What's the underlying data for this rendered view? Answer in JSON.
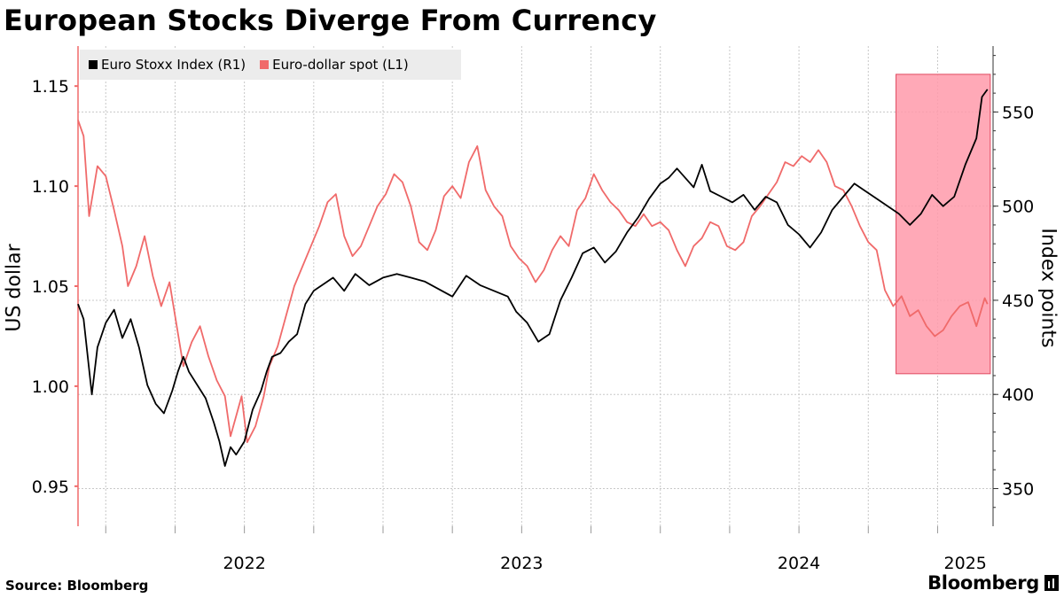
{
  "chart_data": {
    "type": "line",
    "title": "European Stocks Diverge From Currency",
    "ylabel_left": "US dollar",
    "ylabel_right": "Index points",
    "yticks_left": [
      "0.95",
      "1.00",
      "1.05",
      "1.10",
      "1.15"
    ],
    "yticks_right": [
      "350",
      "400",
      "450",
      "500",
      "550"
    ],
    "ylim_left": [
      0.93,
      1.17
    ],
    "ylim_right": [
      330,
      585
    ],
    "xlim": [
      2021.9,
      2025.2
    ],
    "x_tick_labels": [
      {
        "label": "2022",
        "year": 2022.0
      },
      {
        "label": "2023",
        "year": 2023.0
      },
      {
        "label": "2024",
        "year": 2024.0
      },
      {
        "label": "2025",
        "year": 2025.0
      }
    ],
    "highlight": {
      "x_start": 2024.85,
      "x_end": 2025.19,
      "y_start": 411,
      "y_end": 570,
      "axis": "right",
      "color": "#ff9aaa"
    },
    "legend_position": "top-left",
    "series": [
      {
        "name": "Euro Stoxx Index (R1)",
        "axis": "right",
        "color": "#000000",
        "points": [
          [
            2021.9,
            448
          ],
          [
            2021.92,
            440
          ],
          [
            2021.95,
            400
          ],
          [
            2021.97,
            425
          ],
          [
            2022.0,
            438
          ],
          [
            2022.03,
            445
          ],
          [
            2022.06,
            430
          ],
          [
            2022.09,
            440
          ],
          [
            2022.12,
            425
          ],
          [
            2022.15,
            405
          ],
          [
            2022.18,
            395
          ],
          [
            2022.21,
            390
          ],
          [
            2022.24,
            402
          ],
          [
            2022.26,
            412
          ],
          [
            2022.28,
            420
          ],
          [
            2022.3,
            412
          ],
          [
            2022.33,
            405
          ],
          [
            2022.36,
            398
          ],
          [
            2022.39,
            385
          ],
          [
            2022.41,
            375
          ],
          [
            2022.43,
            362
          ],
          [
            2022.45,
            372
          ],
          [
            2022.47,
            368
          ],
          [
            2022.5,
            375
          ],
          [
            2022.53,
            392
          ],
          [
            2022.56,
            402
          ],
          [
            2022.58,
            412
          ],
          [
            2022.6,
            420
          ],
          [
            2022.63,
            422
          ],
          [
            2022.66,
            428
          ],
          [
            2022.69,
            432
          ],
          [
            2022.72,
            448
          ],
          [
            2022.75,
            455
          ],
          [
            2022.78,
            458
          ],
          [
            2022.82,
            462
          ],
          [
            2022.86,
            455
          ],
          [
            2022.9,
            464
          ],
          [
            2022.95,
            458
          ],
          [
            2023.0,
            462
          ],
          [
            2023.05,
            464
          ],
          [
            2023.1,
            462
          ],
          [
            2023.15,
            460
          ],
          [
            2023.2,
            456
          ],
          [
            2023.25,
            452
          ],
          [
            2023.3,
            463
          ],
          [
            2023.35,
            458
          ],
          [
            2023.4,
            455
          ],
          [
            2023.45,
            452
          ],
          [
            2023.48,
            444
          ],
          [
            2023.52,
            438
          ],
          [
            2023.56,
            428
          ],
          [
            2023.6,
            432
          ],
          [
            2023.64,
            450
          ],
          [
            2023.68,
            462
          ],
          [
            2023.72,
            475
          ],
          [
            2023.76,
            478
          ],
          [
            2023.8,
            470
          ],
          [
            2023.84,
            476
          ],
          [
            2023.88,
            486
          ],
          [
            2023.92,
            494
          ],
          [
            2023.96,
            504
          ],
          [
            2024.0,
            512
          ],
          [
            2024.03,
            515
          ],
          [
            2024.06,
            520
          ],
          [
            2024.09,
            515
          ],
          [
            2024.12,
            510
          ],
          [
            2024.15,
            522
          ],
          [
            2024.18,
            508
          ],
          [
            2024.22,
            505
          ],
          [
            2024.26,
            502
          ],
          [
            2024.3,
            506
          ],
          [
            2024.34,
            498
          ],
          [
            2024.38,
            505
          ],
          [
            2024.42,
            502
          ],
          [
            2024.46,
            490
          ],
          [
            2024.5,
            485
          ],
          [
            2024.54,
            478
          ],
          [
            2024.58,
            486
          ],
          [
            2024.62,
            498
          ],
          [
            2024.66,
            505
          ],
          [
            2024.7,
            512
          ],
          [
            2024.74,
            508
          ],
          [
            2024.78,
            504
          ],
          [
            2024.82,
            500
          ],
          [
            2024.86,
            496
          ],
          [
            2024.9,
            490
          ],
          [
            2024.94,
            496
          ],
          [
            2024.98,
            506
          ],
          [
            2025.02,
            500
          ],
          [
            2025.06,
            505
          ],
          [
            2025.1,
            522
          ],
          [
            2025.14,
            536
          ],
          [
            2025.16,
            558
          ],
          [
            2025.18,
            562
          ]
        ]
      },
      {
        "name": "Euro-dollar spot (L1)",
        "axis": "left",
        "color": "#f06a6a",
        "points": [
          [
            2021.9,
            1.133
          ],
          [
            2021.92,
            1.125
          ],
          [
            2021.94,
            1.085
          ],
          [
            2021.97,
            1.11
          ],
          [
            2022.0,
            1.105
          ],
          [
            2022.03,
            1.088
          ],
          [
            2022.06,
            1.07
          ],
          [
            2022.08,
            1.05
          ],
          [
            2022.11,
            1.06
          ],
          [
            2022.14,
            1.075
          ],
          [
            2022.17,
            1.055
          ],
          [
            2022.2,
            1.04
          ],
          [
            2022.23,
            1.052
          ],
          [
            2022.25,
            1.035
          ],
          [
            2022.28,
            1.01
          ],
          [
            2022.31,
            1.022
          ],
          [
            2022.34,
            1.03
          ],
          [
            2022.37,
            1.015
          ],
          [
            2022.4,
            1.003
          ],
          [
            2022.43,
            0.995
          ],
          [
            2022.45,
            0.975
          ],
          [
            2022.47,
            0.985
          ],
          [
            2022.49,
            0.995
          ],
          [
            2022.51,
            0.972
          ],
          [
            2022.54,
            0.98
          ],
          [
            2022.57,
            0.995
          ],
          [
            2022.59,
            1.01
          ],
          [
            2022.62,
            1.02
          ],
          [
            2022.65,
            1.035
          ],
          [
            2022.68,
            1.05
          ],
          [
            2022.71,
            1.06
          ],
          [
            2022.74,
            1.07
          ],
          [
            2022.77,
            1.08
          ],
          [
            2022.8,
            1.092
          ],
          [
            2022.83,
            1.096
          ],
          [
            2022.86,
            1.075
          ],
          [
            2022.89,
            1.065
          ],
          [
            2022.92,
            1.07
          ],
          [
            2022.95,
            1.08
          ],
          [
            2022.98,
            1.09
          ],
          [
            2023.01,
            1.096
          ],
          [
            2023.04,
            1.106
          ],
          [
            2023.07,
            1.102
          ],
          [
            2023.1,
            1.09
          ],
          [
            2023.13,
            1.072
          ],
          [
            2023.16,
            1.068
          ],
          [
            2023.19,
            1.078
          ],
          [
            2023.22,
            1.095
          ],
          [
            2023.25,
            1.1
          ],
          [
            2023.28,
            1.094
          ],
          [
            2023.31,
            1.112
          ],
          [
            2023.34,
            1.12
          ],
          [
            2023.37,
            1.098
          ],
          [
            2023.4,
            1.09
          ],
          [
            2023.43,
            1.085
          ],
          [
            2023.46,
            1.07
          ],
          [
            2023.49,
            1.064
          ],
          [
            2023.52,
            1.06
          ],
          [
            2023.55,
            1.052
          ],
          [
            2023.58,
            1.058
          ],
          [
            2023.61,
            1.068
          ],
          [
            2023.64,
            1.075
          ],
          [
            2023.67,
            1.07
          ],
          [
            2023.7,
            1.088
          ],
          [
            2023.73,
            1.094
          ],
          [
            2023.76,
            1.106
          ],
          [
            2023.79,
            1.098
          ],
          [
            2023.82,
            1.092
          ],
          [
            2023.85,
            1.088
          ],
          [
            2023.88,
            1.082
          ],
          [
            2023.91,
            1.08
          ],
          [
            2023.94,
            1.086
          ],
          [
            2023.97,
            1.08
          ],
          [
            2024.0,
            1.082
          ],
          [
            2024.03,
            1.078
          ],
          [
            2024.06,
            1.068
          ],
          [
            2024.09,
            1.06
          ],
          [
            2024.12,
            1.07
          ],
          [
            2024.15,
            1.074
          ],
          [
            2024.18,
            1.082
          ],
          [
            2024.21,
            1.08
          ],
          [
            2024.24,
            1.07
          ],
          [
            2024.27,
            1.068
          ],
          [
            2024.3,
            1.072
          ],
          [
            2024.33,
            1.085
          ],
          [
            2024.36,
            1.09
          ],
          [
            2024.39,
            1.096
          ],
          [
            2024.42,
            1.102
          ],
          [
            2024.45,
            1.112
          ],
          [
            2024.48,
            1.11
          ],
          [
            2024.51,
            1.115
          ],
          [
            2024.54,
            1.112
          ],
          [
            2024.57,
            1.118
          ],
          [
            2024.6,
            1.112
          ],
          [
            2024.63,
            1.1
          ],
          [
            2024.66,
            1.098
          ],
          [
            2024.69,
            1.09
          ],
          [
            2024.72,
            1.08
          ],
          [
            2024.75,
            1.072
          ],
          [
            2024.78,
            1.068
          ],
          [
            2024.81,
            1.048
          ],
          [
            2024.84,
            1.04
          ],
          [
            2024.87,
            1.045
          ],
          [
            2024.9,
            1.035
          ],
          [
            2024.93,
            1.038
          ],
          [
            2024.96,
            1.03
          ],
          [
            2024.99,
            1.025
          ],
          [
            2025.02,
            1.028
          ],
          [
            2025.05,
            1.035
          ],
          [
            2025.08,
            1.04
          ],
          [
            2025.11,
            1.042
          ],
          [
            2025.14,
            1.03
          ],
          [
            2025.17,
            1.044
          ],
          [
            2025.18,
            1.041
          ]
        ]
      }
    ]
  },
  "footer": {
    "source": "Source: Bloomberg",
    "brand": "Bloomberg"
  }
}
